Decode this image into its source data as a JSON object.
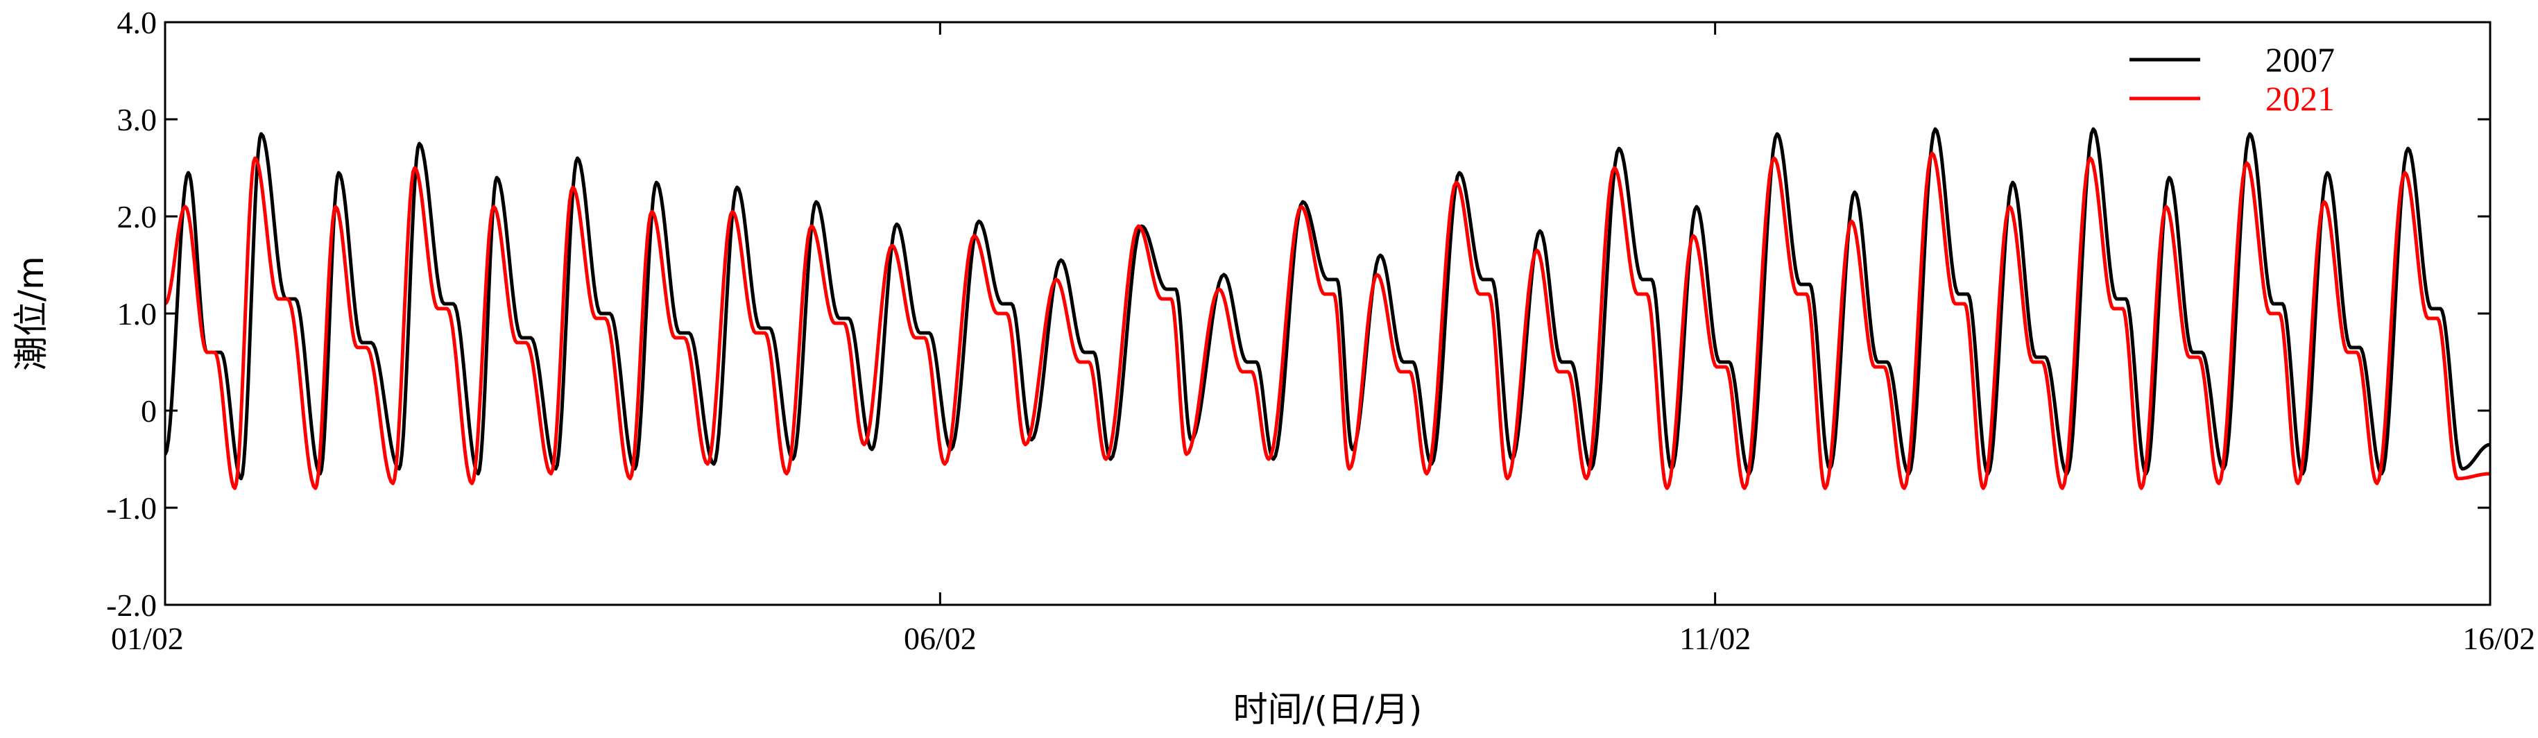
{
  "chart_data": {
    "type": "line",
    "title": "",
    "xlabel": "时间/(日/月)",
    "ylabel": "潮位/m",
    "xlim": [
      1,
      16
    ],
    "ylim": [
      -2.0,
      4.0
    ],
    "x_ticks": [
      1,
      6,
      11,
      16
    ],
    "x_tick_labels": [
      "01/02",
      "06/02",
      "11/02",
      "16/02"
    ],
    "y_ticks": [
      -2,
      -1,
      0,
      1,
      2,
      3,
      4
    ],
    "y_tick_labels": [
      "-2.0",
      "-1.0",
      "0",
      "1.0",
      "2.0",
      "3.0",
      "4.0"
    ],
    "grid": false,
    "legend_position": "top-right",
    "series": [
      {
        "name": "2007",
        "color": "#000000",
        "start": {
          "x": 1.0,
          "y": -0.45
        },
        "cycles": [
          {
            "t_max1": 1.15,
            "h1": 2.45,
            "t_min2": 1.27,
            "l2": 0.6,
            "t_max2": 1.36,
            "h2": 0.6,
            "t_min1": 1.49,
            "l1": -0.7
          },
          {
            "t_max1": 1.62,
            "h1": 2.85,
            "t_min2": 1.78,
            "l2": 1.15,
            "t_max2": 1.84,
            "h2": 1.15,
            "t_min1": 2.0,
            "l1": -0.65
          },
          {
            "t_max1": 2.12,
            "h1": 2.45,
            "t_min2": 2.27,
            "l2": 0.7,
            "t_max2": 2.33,
            "h2": 0.7,
            "t_min1": 2.51,
            "l1": -0.6
          },
          {
            "t_max1": 2.64,
            "h1": 2.75,
            "t_min2": 2.8,
            "l2": 1.1,
            "t_max2": 2.86,
            "h2": 1.1,
            "t_min1": 3.02,
            "l1": -0.65
          },
          {
            "t_max1": 3.14,
            "h1": 2.4,
            "t_min2": 3.3,
            "l2": 0.75,
            "t_max2": 3.36,
            "h2": 0.75,
            "t_min1": 3.52,
            "l1": -0.6
          },
          {
            "t_max1": 3.66,
            "h1": 2.6,
            "t_min2": 3.81,
            "l2": 1.0,
            "t_max2": 3.87,
            "h2": 1.0,
            "t_min1": 4.03,
            "l1": -0.6
          },
          {
            "t_max1": 4.17,
            "h1": 2.35,
            "t_min2": 4.32,
            "l2": 0.8,
            "t_max2": 4.38,
            "h2": 0.8,
            "t_min1": 4.54,
            "l1": -0.55
          },
          {
            "t_max1": 4.69,
            "h1": 2.3,
            "t_min2": 4.84,
            "l2": 0.85,
            "t_max2": 4.9,
            "h2": 0.85,
            "t_min1": 5.05,
            "l1": -0.5
          },
          {
            "t_max1": 5.2,
            "h1": 2.15,
            "t_min2": 5.35,
            "l2": 0.95,
            "t_max2": 5.41,
            "h2": 0.95,
            "t_min1": 5.56,
            "l1": -0.4
          },
          {
            "t_max1": 5.72,
            "h1": 1.92,
            "t_min2": 5.87,
            "l2": 0.8,
            "t_max2": 5.93,
            "h2": 0.8,
            "t_min1": 6.07,
            "l1": -0.4
          },
          {
            "t_max1": 6.25,
            "h1": 1.95,
            "t_min2": 6.4,
            "l2": 1.1,
            "t_max2": 6.46,
            "h2": 1.1,
            "t_min1": 6.59,
            "l1": -0.3
          },
          {
            "t_max1": 6.78,
            "h1": 1.55,
            "t_min2": 6.93,
            "l2": 0.6,
            "t_max2": 6.99,
            "h2": 0.6,
            "t_min1": 7.1,
            "l1": -0.5
          },
          {
            "t_max1": 7.3,
            "h1": 1.9,
            "t_min2": 7.46,
            "l2": 1.25,
            "t_max2": 7.52,
            "h2": 1.25,
            "t_min1": 7.62,
            "l1": -0.3
          },
          {
            "t_max1": 7.83,
            "h1": 1.4,
            "t_min2": 7.98,
            "l2": 0.5,
            "t_max2": 8.04,
            "h2": 0.5,
            "t_min1": 8.15,
            "l1": -0.5
          },
          {
            "t_max1": 8.34,
            "h1": 2.15,
            "t_min2": 8.5,
            "l2": 1.35,
            "t_max2": 8.56,
            "h2": 1.35,
            "t_min1": 8.66,
            "l1": -0.4
          },
          {
            "t_max1": 8.84,
            "h1": 1.6,
            "t_min2": 8.99,
            "l2": 0.5,
            "t_max2": 9.05,
            "h2": 0.5,
            "t_min1": 9.17,
            "l1": -0.55
          },
          {
            "t_max1": 9.35,
            "h1": 2.45,
            "t_min2": 9.5,
            "l2": 1.35,
            "t_max2": 9.56,
            "h2": 1.35,
            "t_min1": 9.69,
            "l1": -0.5
          },
          {
            "t_max1": 9.87,
            "h1": 1.85,
            "t_min2": 10.01,
            "l2": 0.5,
            "t_max2": 10.07,
            "h2": 0.5,
            "t_min1": 10.2,
            "l1": -0.6
          },
          {
            "t_max1": 10.38,
            "h1": 2.7,
            "t_min2": 10.53,
            "l2": 1.35,
            "t_max2": 10.59,
            "h2": 1.35,
            "t_min1": 10.72,
            "l1": -0.6
          },
          {
            "t_max1": 10.88,
            "h1": 2.1,
            "t_min2": 11.03,
            "l2": 0.5,
            "t_max2": 11.09,
            "h2": 0.5,
            "t_min1": 11.22,
            "l1": -0.65
          },
          {
            "t_max1": 11.4,
            "h1": 2.85,
            "t_min2": 11.55,
            "l2": 1.3,
            "t_max2": 11.61,
            "h2": 1.3,
            "t_min1": 11.74,
            "l1": -0.6
          },
          {
            "t_max1": 11.9,
            "h1": 2.25,
            "t_min2": 12.05,
            "l2": 0.5,
            "t_max2": 12.11,
            "h2": 0.5,
            "t_min1": 12.25,
            "l1": -0.65
          },
          {
            "t_max1": 12.42,
            "h1": 2.9,
            "t_min2": 12.57,
            "l2": 1.2,
            "t_max2": 12.63,
            "h2": 1.2,
            "t_min1": 12.76,
            "l1": -0.65
          },
          {
            "t_max1": 12.92,
            "h1": 2.35,
            "t_min2": 13.07,
            "l2": 0.55,
            "t_max2": 13.13,
            "h2": 0.55,
            "t_min1": 13.27,
            "l1": -0.65
          },
          {
            "t_max1": 13.44,
            "h1": 2.9,
            "t_min2": 13.59,
            "l2": 1.15,
            "t_max2": 13.65,
            "h2": 1.15,
            "t_min1": 13.78,
            "l1": -0.65
          },
          {
            "t_max1": 13.93,
            "h1": 2.4,
            "t_min2": 14.08,
            "l2": 0.6,
            "t_max2": 14.14,
            "h2": 0.6,
            "t_min1": 14.28,
            "l1": -0.6
          },
          {
            "t_max1": 14.45,
            "h1": 2.85,
            "t_min2": 14.6,
            "l2": 1.1,
            "t_max2": 14.66,
            "h2": 1.1,
            "t_min1": 14.79,
            "l1": -0.65
          },
          {
            "t_max1": 14.95,
            "h1": 2.45,
            "t_min2": 15.1,
            "l2": 0.65,
            "t_max2": 15.16,
            "h2": 0.65,
            "t_min1": 15.3,
            "l1": -0.65
          },
          {
            "t_max1": 15.47,
            "h1": 2.7,
            "t_min2": 15.62,
            "l2": 1.05,
            "t_max2": 15.68,
            "h2": 1.05,
            "t_min1": 15.82,
            "l1": -0.6
          }
        ],
        "end": {
          "x": 16.0,
          "y": -0.35
        }
      },
      {
        "name": "2021",
        "color": "#ff0000",
        "start": {
          "x": 1.0,
          "y": 1.1
        },
        "cycles": [
          {
            "t_max1": 1.13,
            "h1": 2.1,
            "t_min2": 1.27,
            "l2": 0.6,
            "t_max2": 1.32,
            "h2": 0.6,
            "t_min1": 1.45,
            "l1": -0.8
          },
          {
            "t_max1": 1.58,
            "h1": 2.6,
            "t_min2": 1.73,
            "l2": 1.15,
            "t_max2": 1.79,
            "h2": 1.15,
            "t_min1": 1.97,
            "l1": -0.8
          },
          {
            "t_max1": 2.1,
            "h1": 2.1,
            "t_min2": 2.24,
            "l2": 0.65,
            "t_max2": 2.3,
            "h2": 0.65,
            "t_min1": 2.47,
            "l1": -0.75
          },
          {
            "t_max1": 2.61,
            "h1": 2.5,
            "t_min2": 2.76,
            "l2": 1.05,
            "t_max2": 2.82,
            "h2": 1.05,
            "t_min1": 2.98,
            "l1": -0.75
          },
          {
            "t_max1": 3.12,
            "h1": 2.1,
            "t_min2": 3.27,
            "l2": 0.7,
            "t_max2": 3.33,
            "h2": 0.7,
            "t_min1": 3.49,
            "l1": -0.65
          },
          {
            "t_max1": 3.63,
            "h1": 2.3,
            "t_min2": 3.78,
            "l2": 0.95,
            "t_max2": 3.84,
            "h2": 0.95,
            "t_min1": 4.0,
            "l1": -0.7
          },
          {
            "t_max1": 4.14,
            "h1": 2.05,
            "t_min2": 4.29,
            "l2": 0.75,
            "t_max2": 4.35,
            "h2": 0.75,
            "t_min1": 4.5,
            "l1": -0.55
          },
          {
            "t_max1": 4.66,
            "h1": 2.05,
            "t_min2": 4.81,
            "l2": 0.8,
            "t_max2": 4.87,
            "h2": 0.8,
            "t_min1": 5.01,
            "l1": -0.65
          },
          {
            "t_max1": 5.17,
            "h1": 1.9,
            "t_min2": 5.32,
            "l2": 0.9,
            "t_max2": 5.38,
            "h2": 0.9,
            "t_min1": 5.51,
            "l1": -0.35
          },
          {
            "t_max1": 5.69,
            "h1": 1.7,
            "t_min2": 5.84,
            "l2": 0.75,
            "t_max2": 5.9,
            "h2": 0.75,
            "t_min1": 6.03,
            "l1": -0.55
          },
          {
            "t_max1": 6.22,
            "h1": 1.8,
            "t_min2": 6.37,
            "l2": 1.0,
            "t_max2": 6.43,
            "h2": 1.0,
            "t_min1": 6.55,
            "l1": -0.35
          },
          {
            "t_max1": 6.75,
            "h1": 1.35,
            "t_min2": 6.9,
            "l2": 0.5,
            "t_max2": 6.96,
            "h2": 0.5,
            "t_min1": 7.07,
            "l1": -0.5
          },
          {
            "t_max1": 7.28,
            "h1": 1.9,
            "t_min2": 7.43,
            "l2": 1.15,
            "t_max2": 7.49,
            "h2": 1.15,
            "t_min1": 7.59,
            "l1": -0.45
          },
          {
            "t_max1": 7.8,
            "h1": 1.25,
            "t_min2": 7.95,
            "l2": 0.4,
            "t_max2": 8.01,
            "h2": 0.4,
            "t_min1": 8.12,
            "l1": -0.5
          },
          {
            "t_max1": 8.33,
            "h1": 2.1,
            "t_min2": 8.48,
            "l2": 1.2,
            "t_max2": 8.54,
            "h2": 1.2,
            "t_min1": 8.64,
            "l1": -0.6
          },
          {
            "t_max1": 8.82,
            "h1": 1.4,
            "t_min2": 8.97,
            "l2": 0.4,
            "t_max2": 9.03,
            "h2": 0.4,
            "t_min1": 9.14,
            "l1": -0.65
          },
          {
            "t_max1": 9.33,
            "h1": 2.35,
            "t_min2": 9.48,
            "l2": 1.2,
            "t_max2": 9.54,
            "h2": 1.2,
            "t_min1": 9.66,
            "l1": -0.7
          },
          {
            "t_max1": 9.85,
            "h1": 1.65,
            "t_min2": 9.99,
            "l2": 0.4,
            "t_max2": 10.05,
            "h2": 0.4,
            "t_min1": 10.17,
            "l1": -0.7
          },
          {
            "t_max1": 10.35,
            "h1": 2.5,
            "t_min2": 10.5,
            "l2": 1.2,
            "t_max2": 10.56,
            "h2": 1.2,
            "t_min1": 10.69,
            "l1": -0.8
          },
          {
            "t_max1": 10.86,
            "h1": 1.8,
            "t_min2": 11.01,
            "l2": 0.45,
            "t_max2": 11.07,
            "h2": 0.45,
            "t_min1": 11.19,
            "l1": -0.8
          },
          {
            "t_max1": 11.38,
            "h1": 2.6,
            "t_min2": 11.53,
            "l2": 1.2,
            "t_max2": 11.59,
            "h2": 1.2,
            "t_min1": 11.71,
            "l1": -0.8
          },
          {
            "t_max1": 11.88,
            "h1": 1.95,
            "t_min2": 12.03,
            "l2": 0.45,
            "t_max2": 12.09,
            "h2": 0.45,
            "t_min1": 12.22,
            "l1": -0.8
          },
          {
            "t_max1": 12.4,
            "h1": 2.65,
            "t_min2": 12.55,
            "l2": 1.1,
            "t_max2": 12.61,
            "h2": 1.1,
            "t_min1": 12.73,
            "l1": -0.8
          },
          {
            "t_max1": 12.9,
            "h1": 2.1,
            "t_min2": 13.05,
            "l2": 0.5,
            "t_max2": 13.11,
            "h2": 0.5,
            "t_min1": 13.24,
            "l1": -0.8
          },
          {
            "t_max1": 13.42,
            "h1": 2.6,
            "t_min2": 13.57,
            "l2": 1.05,
            "t_max2": 13.63,
            "h2": 1.05,
            "t_min1": 13.75,
            "l1": -0.8
          },
          {
            "t_max1": 13.91,
            "h1": 2.1,
            "t_min2": 14.06,
            "l2": 0.55,
            "t_max2": 14.12,
            "h2": 0.55,
            "t_min1": 14.25,
            "l1": -0.75
          },
          {
            "t_max1": 14.43,
            "h1": 2.55,
            "t_min2": 14.58,
            "l2": 1.0,
            "t_max2": 14.64,
            "h2": 1.0,
            "t_min1": 14.76,
            "l1": -0.75
          },
          {
            "t_max1": 14.93,
            "h1": 2.15,
            "t_min2": 15.08,
            "l2": 0.6,
            "t_max2": 15.14,
            "h2": 0.6,
            "t_min1": 15.27,
            "l1": -0.75
          },
          {
            "t_max1": 15.45,
            "h1": 2.45,
            "t_min2": 15.6,
            "l2": 0.95,
            "t_max2": 15.66,
            "h2": 0.95,
            "t_min1": 15.79,
            "l1": -0.7
          }
        ],
        "end": {
          "x": 16.0,
          "y": -0.65
        }
      }
    ]
  }
}
